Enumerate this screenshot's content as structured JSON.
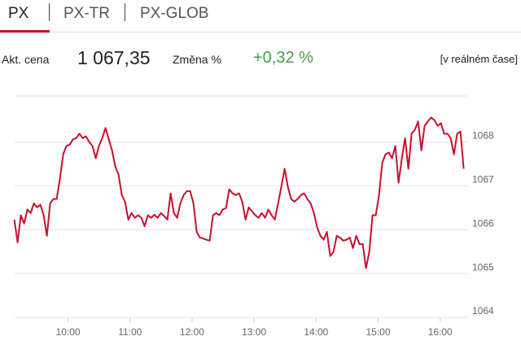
{
  "tabs": [
    "PX",
    "PX-TR",
    "PX-GLOB"
  ],
  "quote": {
    "price_label": "Akt. cena",
    "price": "1 067,35",
    "change_label": "Změna %",
    "change": "+0,32 %",
    "mode": "[v reálném čase]"
  },
  "chart_data": {
    "type": "line",
    "x": [
      9.134,
      9.187,
      9.239,
      9.292,
      9.344,
      9.397,
      9.449,
      9.502,
      9.554,
      9.607,
      9.659,
      9.712,
      9.764,
      9.817,
      9.869,
      9.922,
      9.974,
      10.027,
      10.079,
      10.132,
      10.184,
      10.237,
      10.289,
      10.342,
      10.394,
      10.447,
      10.499,
      10.552,
      10.604,
      10.657,
      10.709,
      10.762,
      10.814,
      10.867,
      10.919,
      10.972,
      11.024,
      11.077,
      11.129,
      11.182,
      11.234,
      11.287,
      11.339,
      11.392,
      11.444,
      11.497,
      11.549,
      11.602,
      11.654,
      11.707,
      11.759,
      11.812,
      11.864,
      11.917,
      11.969,
      12.022,
      12.074,
      12.127,
      12.179,
      12.232,
      12.284,
      12.337,
      12.389,
      12.442,
      12.494,
      12.547,
      12.599,
      12.652,
      12.704,
      12.757,
      12.809,
      12.862,
      12.914,
      12.967,
      13.019,
      13.072,
      13.124,
      13.177,
      13.229,
      13.282,
      13.334,
      13.387,
      13.439,
      13.492,
      13.544,
      13.597,
      13.649,
      13.702,
      13.754,
      13.807,
      13.859,
      13.912,
      13.964,
      14.017,
      14.069,
      14.122,
      14.174,
      14.227,
      14.279,
      14.332,
      14.384,
      14.437,
      14.489,
      14.542,
      14.594,
      14.647,
      14.699,
      14.752,
      14.804,
      14.857,
      14.909,
      14.962,
      15.014,
      15.067,
      15.119,
      15.172,
      15.224,
      15.277,
      15.329,
      15.382,
      15.434,
      15.487,
      15.539,
      15.592,
      15.644,
      15.697,
      15.749,
      15.802,
      15.854,
      15.907,
      15.959,
      16.012,
      16.064,
      16.117,
      16.169,
      16.222,
      16.274,
      16.327,
      16.379
    ],
    "series": [
      {
        "color": "#c8102e",
        "values": [
          1066.23,
          1065.71,
          1066.33,
          1066.14,
          1066.46,
          1066.38,
          1066.6,
          1066.51,
          1066.57,
          1066.33,
          1065.86,
          1066.6,
          1066.7,
          1066.7,
          1067.16,
          1067.72,
          1067.91,
          1067.94,
          1068.06,
          1068.09,
          1068.19,
          1068.09,
          1068.13,
          1068.0,
          1067.91,
          1067.63,
          1067.91,
          1068.09,
          1068.32,
          1068.06,
          1067.81,
          1067.44,
          1067.26,
          1066.79,
          1066.64,
          1066.23,
          1066.38,
          1066.27,
          1066.33,
          1066.27,
          1066.08,
          1066.33,
          1066.27,
          1066.34,
          1066.27,
          1066.38,
          1066.31,
          1066.23,
          1066.83,
          1066.38,
          1066.27,
          1066.6,
          1066.79,
          1066.88,
          1066.88,
          1066.6,
          1065.95,
          1065.82,
          1065.8,
          1065.77,
          1065.75,
          1066.33,
          1066.38,
          1066.33,
          1066.46,
          1066.49,
          1066.92,
          1066.83,
          1066.79,
          1066.83,
          1066.64,
          1066.23,
          1066.51,
          1066.42,
          1066.33,
          1066.27,
          1066.38,
          1066.27,
          1066.46,
          1066.33,
          1066.23,
          1066.6,
          1066.98,
          1067.39,
          1066.98,
          1066.7,
          1066.64,
          1066.7,
          1066.79,
          1066.83,
          1066.7,
          1066.6,
          1066.38,
          1066.05,
          1065.86,
          1065.77,
          1065.95,
          1065.4,
          1065.49,
          1065.86,
          1065.82,
          1065.75,
          1065.77,
          1065.82,
          1065.58,
          1065.86,
          1065.67,
          1065.67,
          1065.12,
          1065.49,
          1066.33,
          1066.33,
          1066.79,
          1067.53,
          1067.72,
          1067.76,
          1067.63,
          1067.91,
          1067.07,
          1067.63,
          1068.09,
          1067.39,
          1068.19,
          1068.28,
          1068.47,
          1067.81,
          1068.37,
          1068.47,
          1068.56,
          1068.5,
          1068.37,
          1068.43,
          1068.19,
          1068.19,
          1068.09,
          1067.72,
          1068.19,
          1068.24,
          1067.39
        ]
      }
    ],
    "xlim": [
      9.1,
      16.45
    ],
    "xticks": [
      {
        "value": 10,
        "label": "10:00"
      },
      {
        "value": 11,
        "label": "11:00"
      },
      {
        "value": 12,
        "label": "12:00"
      },
      {
        "value": 13,
        "label": "13:00"
      },
      {
        "value": 14,
        "label": "14:00"
      },
      {
        "value": 15,
        "label": "15:00"
      },
      {
        "value": 16,
        "label": "16:00"
      }
    ],
    "ylim": [
      1063.8,
      1069.05
    ],
    "yticks": [
      1064,
      1065,
      1066,
      1067,
      1068
    ],
    "grid": true
  }
}
